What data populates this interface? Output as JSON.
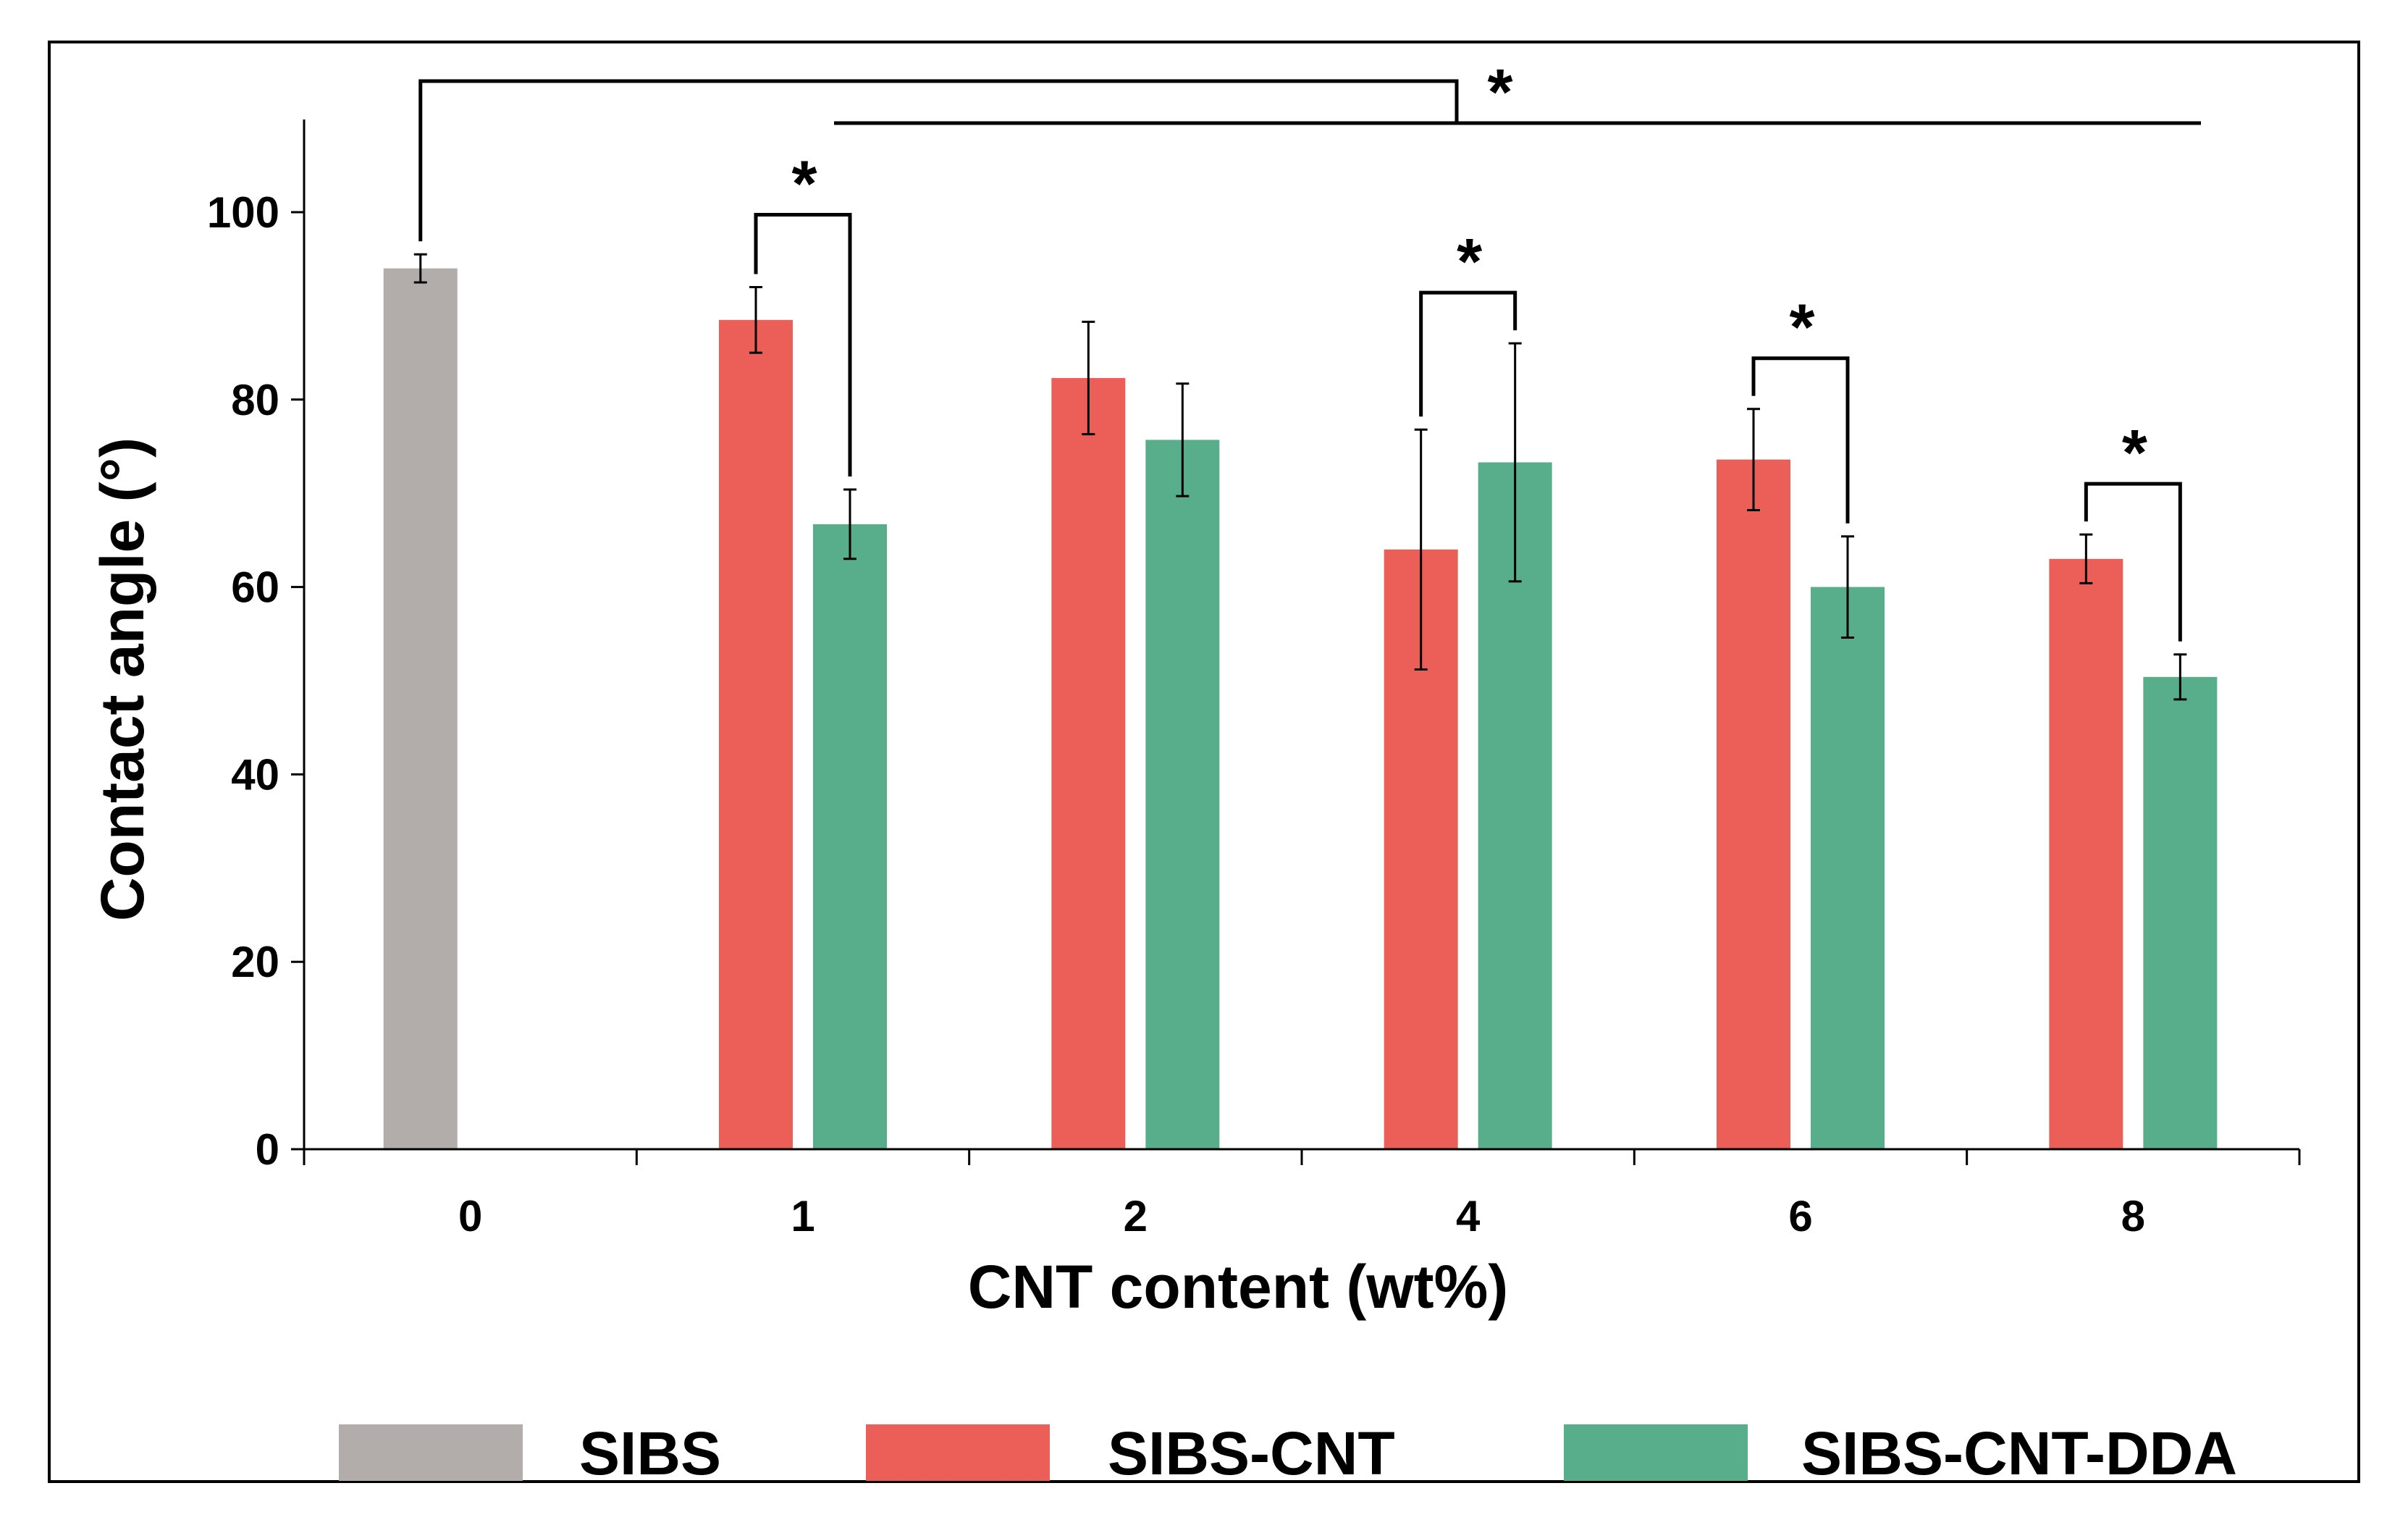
{
  "chart_data": {
    "type": "bar",
    "title": "",
    "xlabel": "CNT content (wt%)",
    "ylabel": "Contact angle (°)",
    "ylim": [
      0,
      110
    ],
    "yticks": [
      0,
      20,
      40,
      60,
      80,
      100
    ],
    "categories": [
      "0",
      "1",
      "2",
      "4",
      "6",
      "8"
    ],
    "series": [
      {
        "name": "SIBS",
        "color": "#b2adab",
        "values": [
          94.0,
          null,
          null,
          null,
          null,
          null
        ],
        "errors": [
          1.5,
          null,
          null,
          null,
          null,
          null
        ]
      },
      {
        "name": "SIBS-CNT",
        "color": "#ec5f58",
        "values": [
          null,
          88.5,
          82.3,
          64.0,
          73.6,
          63.0
        ],
        "errors": [
          null,
          3.5,
          6.0,
          12.8,
          5.4,
          2.6
        ]
      },
      {
        "name": "SIBS-CNT-DDA",
        "color": "#58ae8a",
        "values": [
          null,
          66.7,
          75.7,
          73.3,
          60.0,
          50.4
        ],
        "errors": [
          null,
          3.7,
          6.0,
          12.7,
          5.4,
          2.4
        ]
      }
    ],
    "legend": {
      "position": "bottom",
      "entries": [
        "SIBS",
        "SIBS-CNT",
        "SIBS-CNT-DDA"
      ]
    },
    "annotations": [
      {
        "type": "significance",
        "label": "*",
        "scope": "SIBS (0) vs all SIBS-CNT groups (1–8)"
      },
      {
        "type": "significance",
        "label": "*",
        "scope": "SIBS-CNT vs SIBS-CNT-DDA at 1 wt%"
      },
      {
        "type": "significance",
        "label": "*",
        "scope": "SIBS-CNT vs SIBS-CNT-DDA at 4 wt%"
      },
      {
        "type": "significance",
        "label": "*",
        "scope": "SIBS-CNT vs SIBS-CNT-DDA at 6 wt%"
      },
      {
        "type": "significance",
        "label": "*",
        "scope": "SIBS-CNT vs SIBS-CNT-DDA at 8 wt%"
      }
    ]
  }
}
